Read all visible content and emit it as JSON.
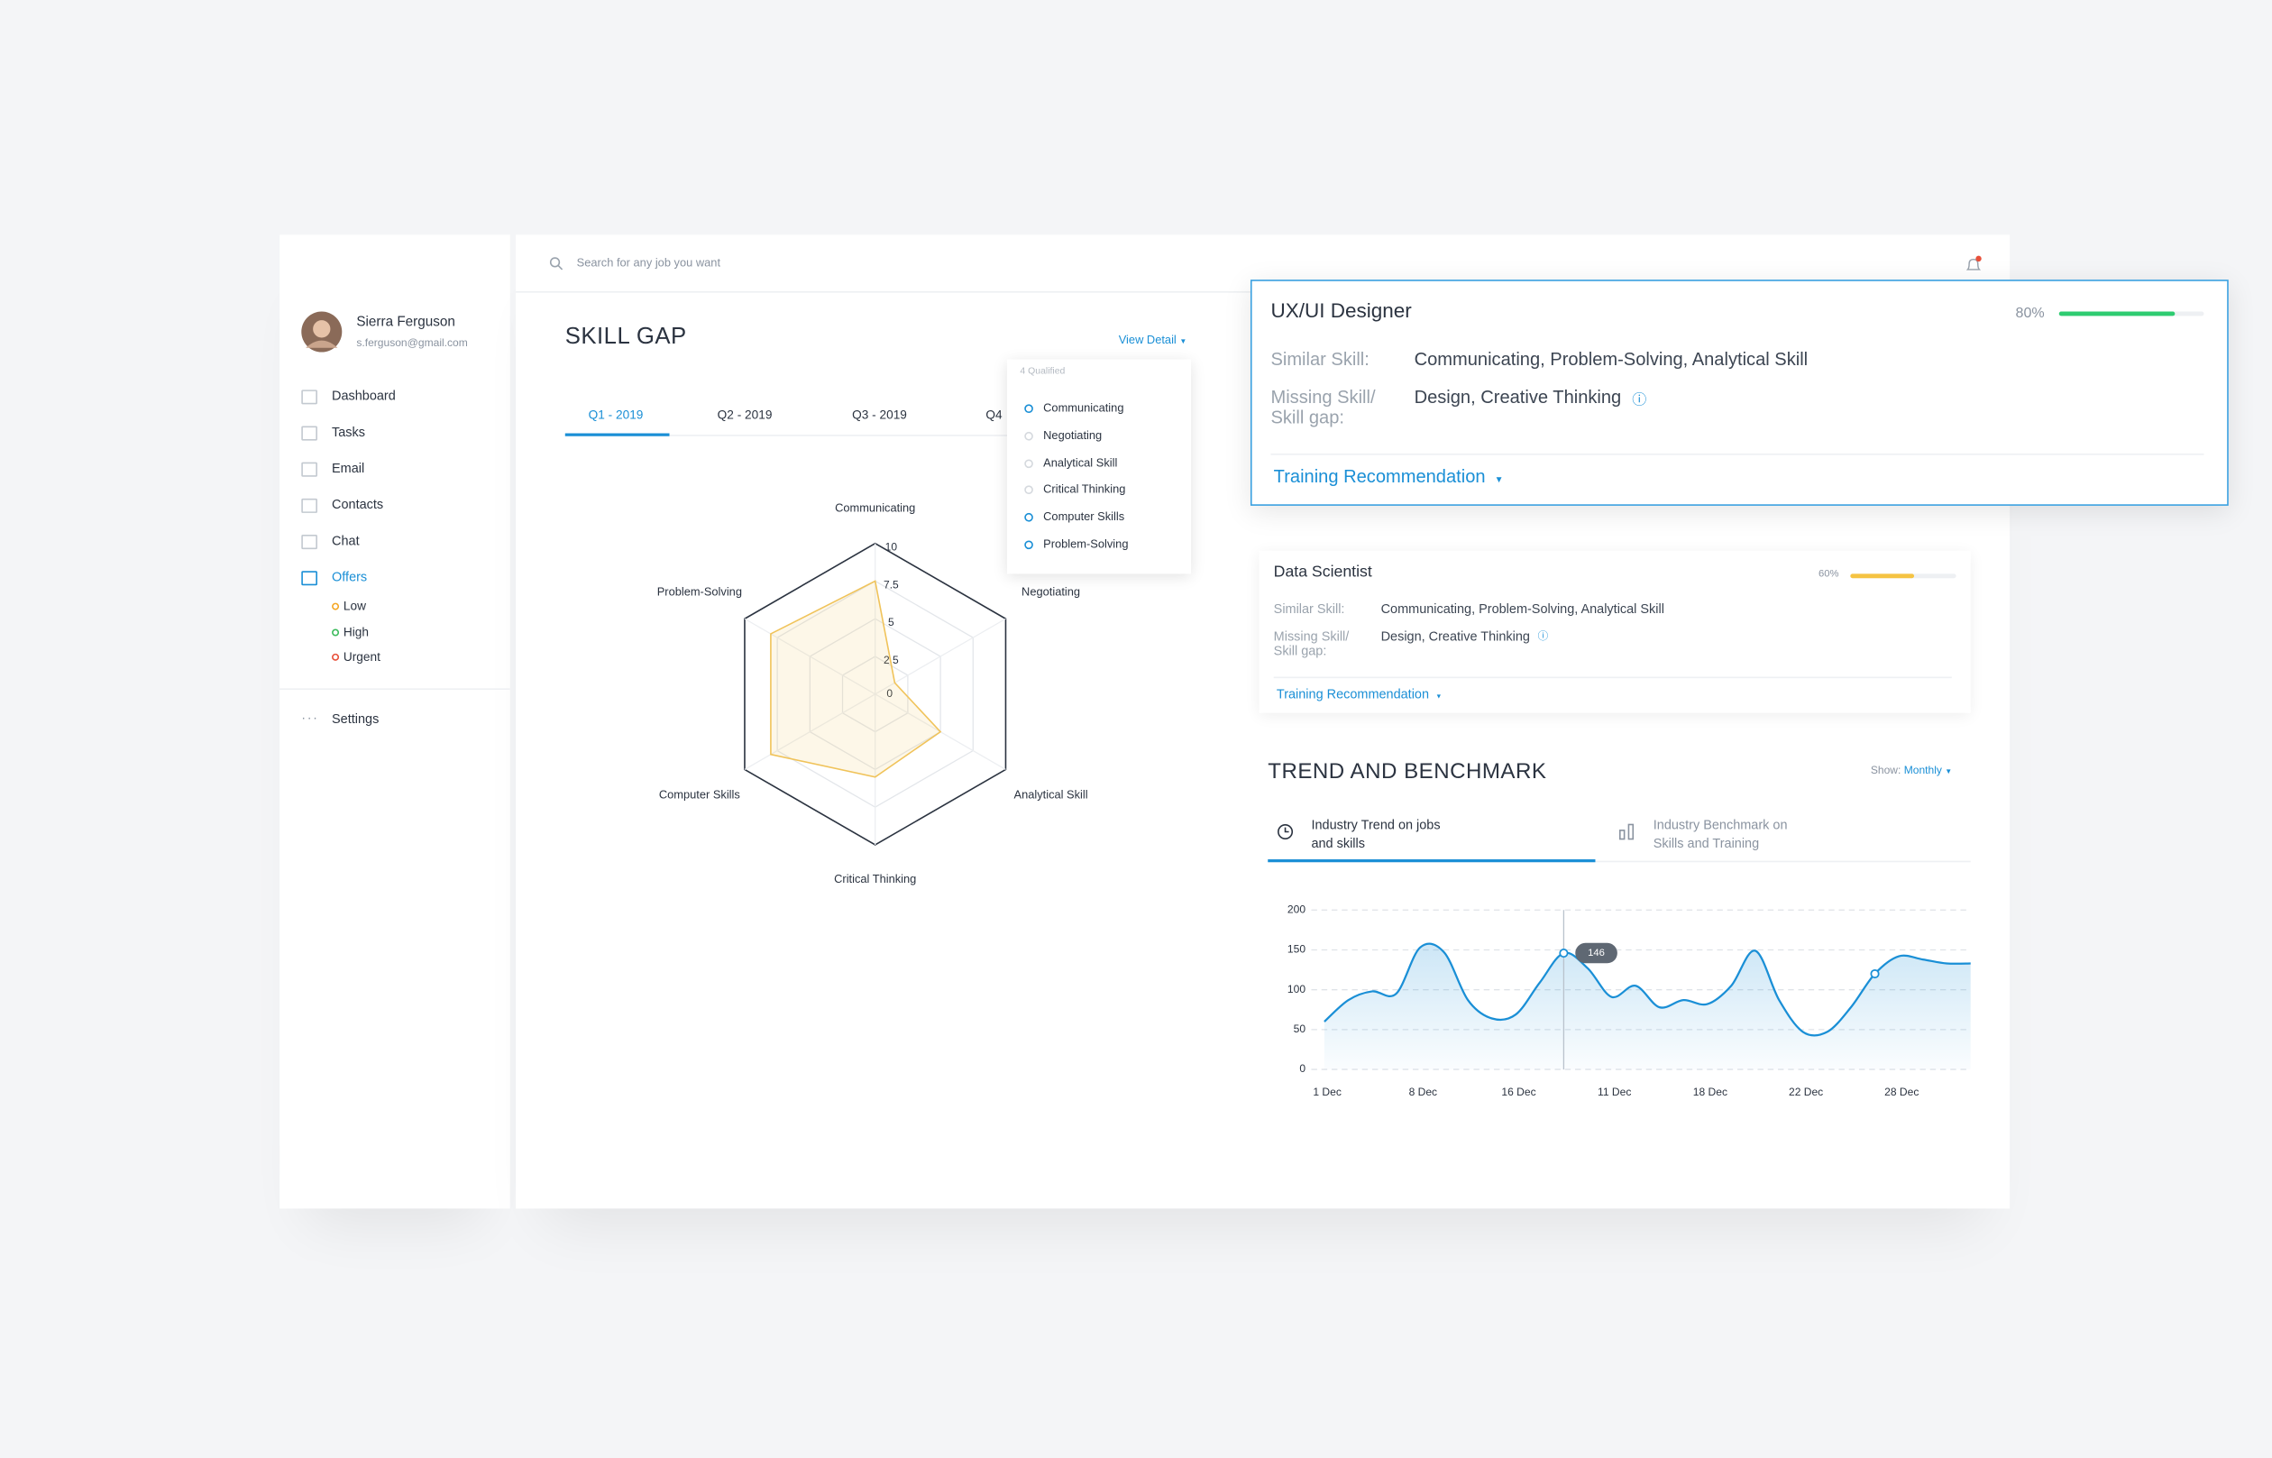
{
  "sidebar": {
    "user": {
      "name": "Sierra Ferguson",
      "email": "s.ferguson@gmail.com"
    },
    "nav": [
      "Dashboard",
      "Tasks",
      "Email",
      "Contacts",
      "Chat",
      "Offers"
    ],
    "offers": [
      {
        "label": "Low",
        "color": "#f5a623"
      },
      {
        "label": "High",
        "color": "#3dbb5d"
      },
      {
        "label": "Urgent",
        "color": "#e8503a"
      }
    ],
    "settings": "Settings"
  },
  "search": "Search for any job you want",
  "skill_gap": {
    "title": "SKILL GAP",
    "view_detail": "View Detail",
    "tabs": [
      "Q1 - 2019",
      "Q2 - 2019",
      "Q3 - 2019",
      "Q4"
    ],
    "filter": {
      "header": "4 Qualified",
      "items": [
        {
          "label": "Communicating",
          "checked": true
        },
        {
          "label": "Negotiating",
          "checked": false
        },
        {
          "label": "Analytical Skill",
          "checked": false
        },
        {
          "label": "Critical Thinking",
          "checked": false
        },
        {
          "label": "Computer Skills",
          "checked": true
        },
        {
          "label": "Problem-Solving",
          "checked": true
        }
      ]
    }
  },
  "jobs": [
    {
      "title": "UX/UI Designer",
      "match": {
        "value": 80,
        "label": "80%"
      },
      "color": "#2ecc71",
      "similar_label": "Similar Skill:",
      "similar": "Communicating, Problem-Solving, Analytical Skill",
      "missing_label": [
        "Missing Skill/",
        "Skill gap:"
      ],
      "missing": "Design, Creative Thinking",
      "action": "Training Recommendation"
    },
    {
      "title": "Data Scientist",
      "match": {
        "value": 60,
        "label": "60%"
      },
      "color": "#f5c342",
      "similar_label": "Similar Skill:",
      "similar": "Communicating, Problem-Solving, Analytical Skill",
      "missing_label": [
        "Missing Skill/",
        "Skill gap:"
      ],
      "missing": "Design, Creative Thinking",
      "action": "Training Recommendation"
    }
  ],
  "trend": {
    "title": "TREND AND BENCHMARK",
    "show_label": "Show:",
    "show_value": "Monthly",
    "tabs": [
      [
        "Industry Trend on jobs",
        "and skills"
      ],
      [
        "Industry Benchmark on",
        "Skills and Training"
      ]
    ]
  },
  "chart_data": [
    {
      "type": "radar",
      "categories": [
        "Communicating",
        "Negotiating",
        "Analytical Skill",
        "Critical Thinking",
        "Computer Skills",
        "Problem-Solving"
      ],
      "values": [
        7.5,
        1.5,
        5,
        5.5,
        8,
        8
      ],
      "color": "#f0c35a",
      "rlim": [
        0,
        10
      ],
      "rticks": [
        0,
        2.5,
        5,
        7.5,
        10
      ]
    },
    {
      "type": "line",
      "categories": [
        "1 Dec",
        null,
        null,
        null,
        "8 Dec",
        null,
        null,
        null,
        "16 Dec",
        null,
        null,
        null,
        "11 Dec",
        null,
        null,
        null,
        "18 Dec",
        null,
        null,
        null,
        "22 Dec",
        null,
        null,
        null,
        "28 Dec",
        null,
        null,
        null
      ],
      "values": [
        60,
        87,
        98,
        95,
        153,
        147,
        87,
        64,
        69,
        109,
        146,
        127,
        91,
        105,
        78,
        87,
        82,
        105,
        149,
        87,
        47,
        47,
        78,
        120,
        142,
        138,
        133,
        133
      ],
      "color": "#1a8fd6",
      "ylim": [
        0,
        200
      ],
      "yticks": [
        0,
        50,
        100,
        150,
        200
      ],
      "grid": true
    }
  ]
}
